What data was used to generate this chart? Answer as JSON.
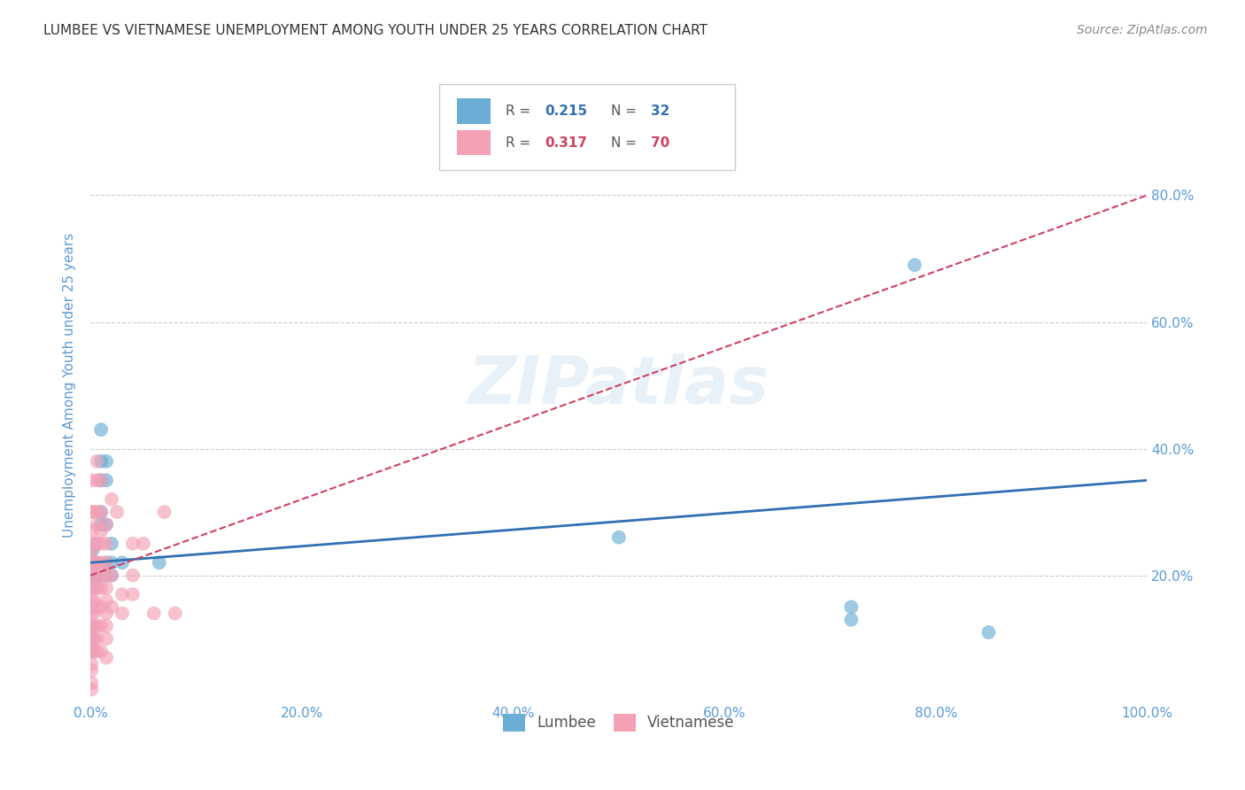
{
  "title": "LUMBEE VS VIETNAMESE UNEMPLOYMENT AMONG YOUTH UNDER 25 YEARS CORRELATION CHART",
  "source": "Source: ZipAtlas.com",
  "ylabel": "Unemployment Among Youth under 25 years",
  "xlim": [
    0,
    100
  ],
  "ylim": [
    0,
    100
  ],
  "xtick_vals": [
    0,
    20,
    40,
    60,
    80,
    100
  ],
  "xtick_labels": [
    "0.0%",
    "20.0%",
    "40.0%",
    "60.0%",
    "80.0%",
    "100.0%"
  ],
  "right_ytick_vals": [
    20,
    40,
    60,
    80
  ],
  "right_ytick_labels": [
    "20.0%",
    "40.0%",
    "60.0%",
    "80.0%"
  ],
  "lumbee_R": "0.215",
  "lumbee_N": "32",
  "vietnamese_R": "0.317",
  "vietnamese_N": "70",
  "lumbee_color": "#6aaed6",
  "vietnamese_color": "#f4a0b5",
  "lumbee_line_color": "#3070b3",
  "vietnamese_line_color": "#d04060",
  "watermark": "ZIPatlas",
  "lumbee_line": [
    0,
    100,
    22,
    35
  ],
  "vietnamese_line": [
    0,
    100,
    20,
    80
  ],
  "lumbee_points": [
    [
      0.2,
      22
    ],
    [
      0.2,
      24
    ],
    [
      0.2,
      20
    ],
    [
      0.2,
      18
    ],
    [
      0.2,
      15
    ],
    [
      0.2,
      12
    ],
    [
      0.2,
      10
    ],
    [
      0.2,
      8
    ],
    [
      0.5,
      25
    ],
    [
      0.5,
      22
    ],
    [
      0.5,
      20
    ],
    [
      0.5,
      19
    ],
    [
      1.0,
      43
    ],
    [
      1.0,
      38
    ],
    [
      1.0,
      35
    ],
    [
      1.0,
      30
    ],
    [
      1.0,
      28
    ],
    [
      1.5,
      38
    ],
    [
      1.5,
      35
    ],
    [
      1.5,
      28
    ],
    [
      1.5,
      22
    ],
    [
      1.5,
      20
    ],
    [
      2.0,
      25
    ],
    [
      2.0,
      22
    ],
    [
      2.0,
      20
    ],
    [
      3.0,
      22
    ],
    [
      6.5,
      22
    ],
    [
      50,
      26
    ],
    [
      72,
      13
    ],
    [
      72,
      15
    ],
    [
      78,
      69
    ],
    [
      85,
      11
    ]
  ],
  "vietnamese_points": [
    [
      0.1,
      35
    ],
    [
      0.1,
      30
    ],
    [
      0.1,
      27
    ],
    [
      0.1,
      24
    ],
    [
      0.1,
      22
    ],
    [
      0.1,
      20
    ],
    [
      0.1,
      18
    ],
    [
      0.1,
      16
    ],
    [
      0.1,
      14
    ],
    [
      0.1,
      12
    ],
    [
      0.1,
      10
    ],
    [
      0.1,
      8
    ],
    [
      0.1,
      6
    ],
    [
      0.1,
      5
    ],
    [
      0.1,
      3
    ],
    [
      0.1,
      2
    ],
    [
      0.3,
      30
    ],
    [
      0.3,
      25
    ],
    [
      0.3,
      22
    ],
    [
      0.3,
      20
    ],
    [
      0.3,
      18
    ],
    [
      0.3,
      16
    ],
    [
      0.3,
      14
    ],
    [
      0.3,
      12
    ],
    [
      0.3,
      10
    ],
    [
      0.3,
      8
    ],
    [
      0.6,
      38
    ],
    [
      0.6,
      35
    ],
    [
      0.6,
      30
    ],
    [
      0.6,
      28
    ],
    [
      0.6,
      25
    ],
    [
      0.6,
      22
    ],
    [
      0.6,
      18
    ],
    [
      0.6,
      15
    ],
    [
      0.6,
      12
    ],
    [
      0.6,
      10
    ],
    [
      0.6,
      8
    ],
    [
      1.0,
      35
    ],
    [
      1.0,
      30
    ],
    [
      1.0,
      27
    ],
    [
      1.0,
      25
    ],
    [
      1.0,
      22
    ],
    [
      1.0,
      20
    ],
    [
      1.0,
      18
    ],
    [
      1.0,
      15
    ],
    [
      1.0,
      12
    ],
    [
      1.0,
      8
    ],
    [
      1.5,
      28
    ],
    [
      1.5,
      25
    ],
    [
      1.5,
      22
    ],
    [
      1.5,
      20
    ],
    [
      1.5,
      18
    ],
    [
      1.5,
      16
    ],
    [
      1.5,
      14
    ],
    [
      1.5,
      12
    ],
    [
      1.5,
      10
    ],
    [
      1.5,
      7
    ],
    [
      2.0,
      32
    ],
    [
      2.0,
      20
    ],
    [
      2.0,
      15
    ],
    [
      2.5,
      30
    ],
    [
      3.0,
      17
    ],
    [
      3.0,
      14
    ],
    [
      4.0,
      25
    ],
    [
      4.0,
      20
    ],
    [
      4.0,
      17
    ],
    [
      5.0,
      25
    ],
    [
      6.0,
      14
    ],
    [
      7.0,
      30
    ],
    [
      8.0,
      14
    ]
  ],
  "background_color": "#ffffff",
  "grid_color": "#cccccc",
  "title_color": "#333333",
  "axis_label_color": "#5b9bd5",
  "tick_label_color": "#5b9bd5"
}
